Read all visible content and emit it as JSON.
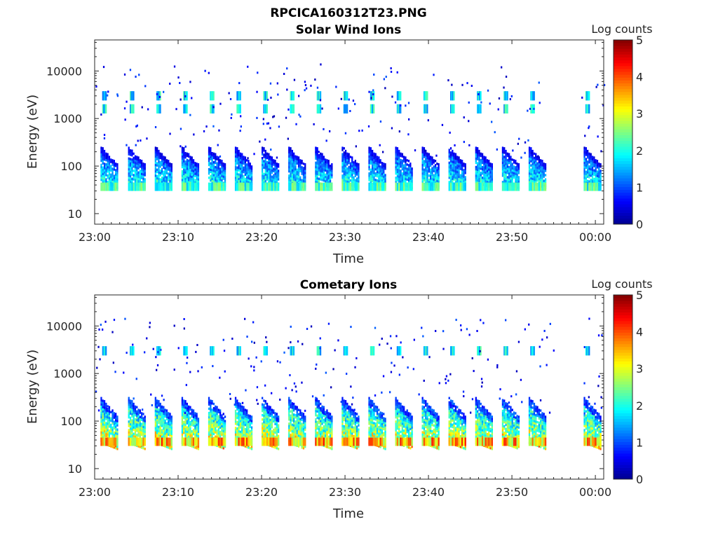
{
  "figure_title": "RPCICA160312T23.PNG",
  "colormap": [
    "#00008f",
    "#0000ff",
    "#0080ff",
    "#00ffff",
    "#80ff80",
    "#ffff00",
    "#ff8000",
    "#ff0000",
    "#800000"
  ],
  "chart_data": [
    {
      "type": "heatmap",
      "title": "Solar Wind Ions",
      "xlabel": "Time",
      "ylabel": "Energy (eV)",
      "yscale": "log",
      "ylim": [
        6,
        45000
      ],
      "xlim": [
        "23:00",
        "00:01"
      ],
      "x_ticks": [
        "23:00",
        "23:10",
        "23:20",
        "23:30",
        "23:40",
        "23:50",
        "00:00"
      ],
      "y_ticks": [
        "10",
        "100",
        "1000",
        "10000"
      ],
      "y_tick_values": [
        10,
        100,
        1000,
        10000
      ],
      "colorbar": {
        "label": "Log counts",
        "range": [
          0,
          5
        ],
        "ticks": [
          "0",
          "1",
          "2",
          "3",
          "4",
          "5"
        ]
      },
      "grid": false,
      "sweep_period_min": 3.2,
      "sweep_start_min": [
        0.7,
        4.0,
        7.2,
        10.4,
        13.6,
        16.8,
        20.0,
        23.2,
        26.4,
        29.6,
        32.8,
        36.0,
        39.2,
        42.4,
        45.6,
        48.8,
        52.0,
        58.6
      ],
      "features": {
        "high_energy_bands_eV": [
          1600,
          3000
        ],
        "sweep_top_eV": 250,
        "sweep_bottom_eV": 40,
        "peak_log_counts": 2.2,
        "data_gap_minutes": [
          55.0,
          58.3
        ]
      }
    },
    {
      "type": "heatmap",
      "title": "Cometary Ions",
      "xlabel": "Time",
      "ylabel": "Energy (eV)",
      "yscale": "log",
      "ylim": [
        6,
        45000
      ],
      "xlim": [
        "23:00",
        "00:01"
      ],
      "x_ticks": [
        "23:00",
        "23:10",
        "23:20",
        "23:30",
        "23:40",
        "23:50",
        "00:00"
      ],
      "y_ticks": [
        "10",
        "100",
        "1000",
        "10000"
      ],
      "y_tick_values": [
        10,
        100,
        1000,
        10000
      ],
      "colorbar": {
        "label": "Log counts",
        "range": [
          0,
          5
        ],
        "ticks": [
          "0",
          "1",
          "2",
          "3",
          "4",
          "5"
        ]
      },
      "grid": false,
      "sweep_period_min": 3.2,
      "sweep_start_min": [
        0.7,
        4.0,
        7.2,
        10.4,
        13.6,
        16.8,
        20.0,
        23.2,
        26.4,
        29.6,
        32.8,
        36.0,
        39.2,
        42.4,
        45.6,
        48.8,
        52.0,
        58.6
      ],
      "features": {
        "high_energy_bands_eV": [
          3000
        ],
        "sweep_top_eV": 300,
        "sweep_bottom_eV": 30,
        "peak_log_counts": 3.6,
        "data_gap_minutes": [
          55.0,
          58.3
        ]
      }
    }
  ]
}
